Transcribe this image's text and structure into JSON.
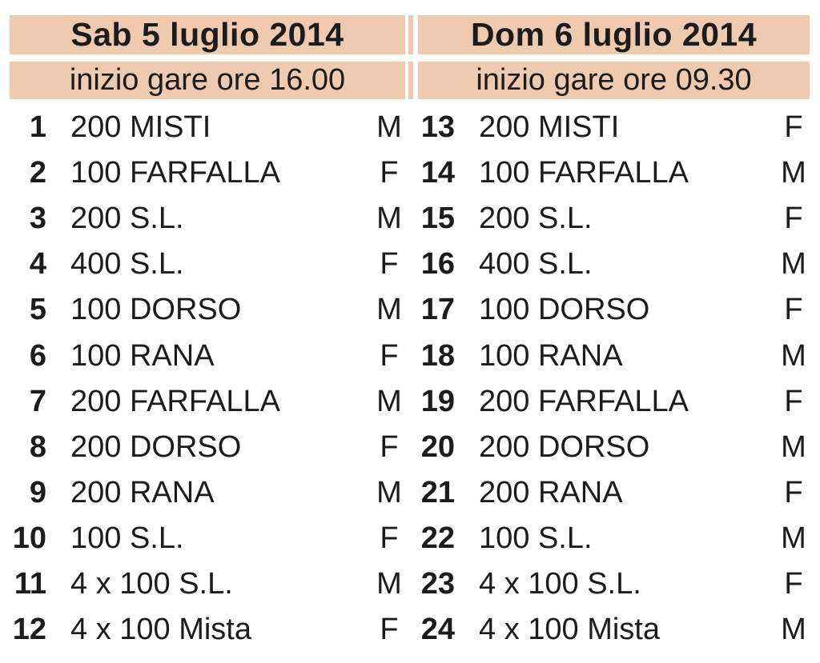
{
  "page": {
    "background_color": "#ffffff",
    "header_bg_color": "#f0caae",
    "text_color": "#1c1c1c"
  },
  "days": [
    {
      "title": "Sab 5 luglio 2014",
      "subtitle": "inizio gare ore 16.00",
      "events": [
        {
          "num": "1",
          "name": "200 MISTI",
          "gender": "M"
        },
        {
          "num": "2",
          "name": "100 FARFALLA",
          "gender": "F"
        },
        {
          "num": "3",
          "name": "200 S.L.",
          "gender": "M"
        },
        {
          "num": "4",
          "name": "400 S.L.",
          "gender": "F"
        },
        {
          "num": "5",
          "name": "100 DORSO",
          "gender": "M"
        },
        {
          "num": "6",
          "name": "100 RANA",
          "gender": "F"
        },
        {
          "num": "7",
          "name": "200 FARFALLA",
          "gender": "M"
        },
        {
          "num": "8",
          "name": "200 DORSO",
          "gender": "F"
        },
        {
          "num": "9",
          "name": "200 RANA",
          "gender": "M"
        },
        {
          "num": "10",
          "name": "100 S.L.",
          "gender": "F"
        },
        {
          "num": "11",
          "name": "4 x 100 S.L.",
          "gender": "M"
        },
        {
          "num": "12",
          "name": "4 x 100 Mista",
          "gender": "F"
        }
      ]
    },
    {
      "title": "Dom 6 luglio 2014",
      "subtitle": "inizio gare ore 09.30",
      "events": [
        {
          "num": "13",
          "name": "200 MISTI",
          "gender": "F"
        },
        {
          "num": "14",
          "name": "100 FARFALLA",
          "gender": "M"
        },
        {
          "num": "15",
          "name": "200 S.L.",
          "gender": "F"
        },
        {
          "num": "16",
          "name": "400 S.L.",
          "gender": "M"
        },
        {
          "num": "17",
          "name": "100 DORSO",
          "gender": "F"
        },
        {
          "num": "18",
          "name": "100 RANA",
          "gender": "M"
        },
        {
          "num": "19",
          "name": "200 FARFALLA",
          "gender": "F"
        },
        {
          "num": "20",
          "name": "200 DORSO",
          "gender": "M"
        },
        {
          "num": "21",
          "name": "200 RANA",
          "gender": "F"
        },
        {
          "num": "22",
          "name": "100 S.L.",
          "gender": "M"
        },
        {
          "num": "23",
          "name": "4 x 100 S.L.",
          "gender": "F"
        },
        {
          "num": "24",
          "name": "4 x 100 Mista",
          "gender": "M"
        }
      ]
    }
  ]
}
